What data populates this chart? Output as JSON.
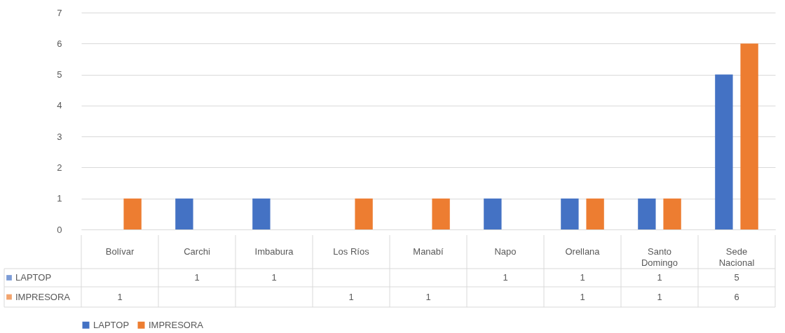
{
  "chart_data": {
    "type": "bar",
    "categories": [
      "Bolívar",
      "Carchi",
      "Imbabura",
      "Los Ríos",
      "Manabí",
      "Napo",
      "Orellana",
      "Santo Domingo",
      "Sede Nacional"
    ],
    "series": [
      {
        "name": "LAPTOP",
        "color": "#4472c4",
        "values": [
          null,
          1,
          1,
          null,
          null,
          1,
          1,
          1,
          5
        ]
      },
      {
        "name": "IMPRESORA",
        "color": "#ed7d31",
        "values": [
          1,
          null,
          null,
          1,
          1,
          null,
          1,
          1,
          6
        ]
      }
    ],
    "ylim": [
      0,
      7
    ],
    "yticks": [
      0,
      1,
      2,
      3,
      4,
      5,
      6,
      7
    ],
    "grid": "y",
    "legend": "bottom",
    "data_labels": true
  }
}
